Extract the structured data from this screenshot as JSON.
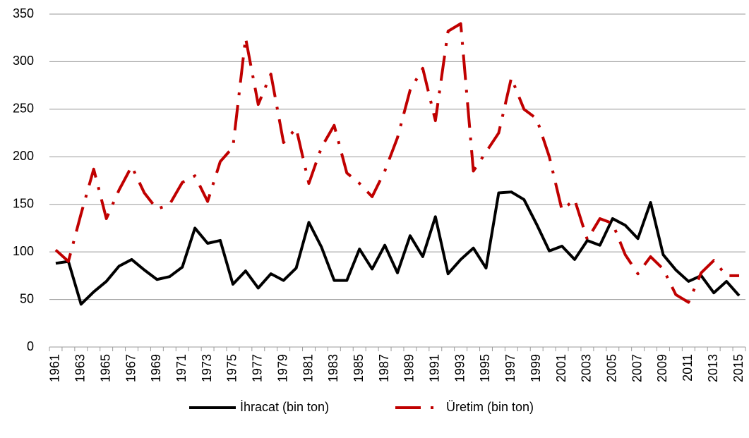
{
  "chart_data": {
    "type": "line",
    "categories": [
      "1961",
      null,
      "1963",
      null,
      "1965",
      null,
      "1967",
      null,
      "1969",
      null,
      "1971",
      null,
      "1973",
      null,
      "1975",
      null,
      "1977",
      null,
      "1979",
      null,
      "1981",
      null,
      "1983",
      null,
      "1985",
      null,
      "1987",
      null,
      "1989",
      null,
      "1991",
      null,
      "1993",
      null,
      "1995",
      null,
      "1997",
      null,
      "1999",
      null,
      "2001",
      null,
      "2003",
      null,
      "2005",
      null,
      "2007",
      null,
      "2009",
      null,
      "2011",
      null,
      "2013",
      null,
      "2015"
    ],
    "series": [
      {
        "name": "İhracat (bin ton)",
        "color": "#000000",
        "dash": false,
        "values": [
          88,
          90,
          45,
          58,
          69,
          85,
          92,
          81,
          71,
          74,
          84,
          125,
          109,
          112,
          66,
          80,
          62,
          77,
          70,
          83,
          131,
          105,
          70,
          70,
          103,
          82,
          107,
          78,
          117,
          95,
          137,
          77,
          92,
          104,
          83,
          162,
          163,
          155,
          129,
          101,
          106,
          92,
          112,
          107,
          135,
          128,
          114,
          152,
          97,
          81,
          69,
          75,
          57,
          69,
          54
        ]
      },
      {
        "name": "Üretim (bin ton)",
        "color": "#c00000",
        "dash": true,
        "values": [
          102,
          90,
          140,
          187,
          135,
          165,
          190,
          162,
          145,
          150,
          173,
          180,
          153,
          195,
          210,
          325,
          255,
          287,
          215,
          230,
          172,
          210,
          233,
          183,
          172,
          158,
          185,
          220,
          270,
          293,
          238,
          332,
          340,
          185,
          205,
          225,
          283,
          250,
          240,
          200,
          144,
          155,
          113,
          135,
          130,
          97,
          77,
          95,
          82,
          55,
          47,
          78,
          91,
          75,
          75
        ]
      }
    ],
    "ylim": [
      0,
      350
    ],
    "yticks": [
      0,
      50,
      100,
      150,
      200,
      250,
      300,
      350
    ],
    "grid": true,
    "legend": "bottom"
  }
}
